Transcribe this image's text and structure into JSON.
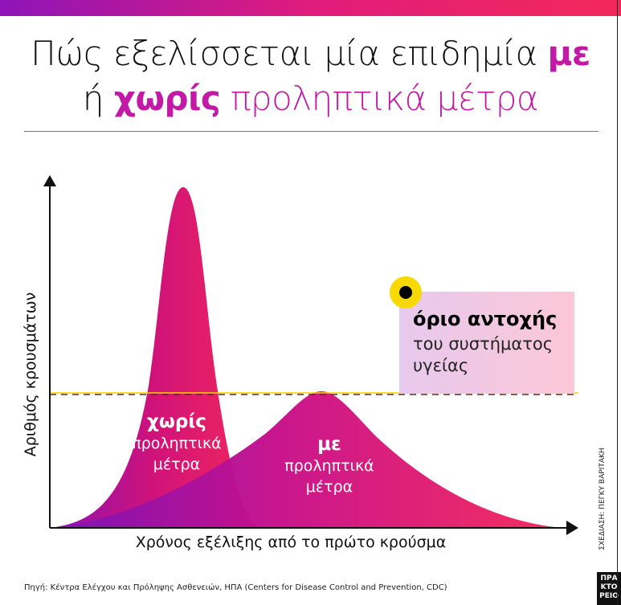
{
  "title": {
    "line1_pre": "Πώς εξελίσσεται μία επιδημία ",
    "line1_hl": "με",
    "line2_pre": "ή ",
    "line2_hl": "χωρίς",
    "line2_post": " προληπτικά μέτρα"
  },
  "axes": {
    "y_label": "Αριθμός κρουσμάτων",
    "x_label": "Χρόνος εξέλιξης από το πρώτο κρούσμα"
  },
  "curves": {
    "without": {
      "bold": "χωρίς",
      "line1": "προληπτικά",
      "line2": "μέτρα"
    },
    "with": {
      "bold": "με",
      "line1": "προληπτικά",
      "line2": "μέτρα"
    }
  },
  "threshold": {
    "bold": "όριο αντοχής",
    "line1": "του συστήματος",
    "line2": "υγείας"
  },
  "source": "Πηγή: Κέντρα Ελέγχου και Πρόληψης Ασθενειών, ΗΠΑ (Centers for Disease Control and Prevention, CDC)",
  "credit": "ΣΧΕΔΙΑΣΗ: ΠΕΓΚΥ ΒΑΡΙΤΑΚΗ",
  "logo": {
    "l1": "ΠΡΑ",
    "l2": "ΚΤΟ",
    "l3": "ΡΕΙΟ"
  },
  "colors": {
    "accent": "#c21aa6",
    "gradient_start": "#8e14b8",
    "gradient_end": "#f2285a",
    "threshold_dot": "#f7d800"
  }
}
